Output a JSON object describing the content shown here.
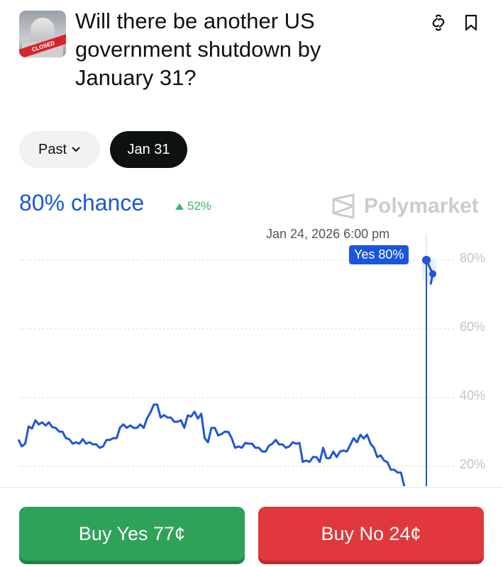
{
  "market": {
    "title": "Will there be another US government shutdown by January 31?",
    "thumbnail_text": "CLOSED",
    "icons": [
      "link-icon",
      "bookmark-icon"
    ]
  },
  "filters": {
    "past_label": "Past",
    "date_label": "Jan 31"
  },
  "summary": {
    "chance": "80% chance",
    "change": "52%",
    "change_direction": "up"
  },
  "brand": {
    "name": "Polymarket"
  },
  "hover": {
    "date": "Jan 24, 2026 6:00 pm",
    "label": "Yes 80%"
  },
  "actions": {
    "buy_yes": "Buy Yes 77¢",
    "buy_no": "Buy No 24¢"
  },
  "colors": {
    "accent": "#1a56db",
    "yes": "#2fa25a",
    "no": "#e0383c",
    "up": "#3cb371"
  },
  "chart_data": {
    "type": "line",
    "ylim": [
      20,
      80
    ],
    "yticks": [
      "80%",
      "60%",
      "40%",
      "20%"
    ],
    "ytick_values": [
      80,
      60,
      40,
      20
    ],
    "grid": true,
    "series": [
      {
        "values": [
          27.8,
          25.8,
          26.6,
          31.6,
          31,
          33.4,
          32.2,
          32.8,
          31.9,
          32.8,
          31.4,
          31.2,
          30.1,
          30.1,
          28.2,
          27.9,
          26.6,
          27,
          26.6,
          27.9,
          26.6,
          27,
          26.4,
          26.4,
          25.4,
          25.8,
          27.7,
          27.7,
          28.2,
          28.2,
          31.3,
          32.2,
          31.2,
          31.9,
          31.2,
          31.2,
          32.2,
          31.2,
          34,
          35.7,
          38,
          38,
          34.2,
          34.9,
          34.2,
          34.2,
          33,
          33,
          33.4,
          31.2,
          34.8,
          34.5,
          35.9,
          33.9,
          35.3,
          28.2,
          27,
          31.2,
          31.2,
          29,
          29.4,
          30.1,
          30,
          28.2,
          25.4,
          25.8,
          25.4,
          26.8,
          26.6,
          26.6,
          25.4,
          25.4,
          24.3,
          24.3,
          26,
          26.6,
          27.7,
          26.4,
          26.4,
          25.4,
          25.8,
          27,
          26.6,
          26.8,
          21.3,
          21.7,
          21.3,
          22.7,
          22.7,
          21.3,
          25.4,
          22.4,
          22.4,
          24.3,
          22.7,
          24.3,
          24.6,
          24.3,
          26.2,
          28.2,
          27,
          29.2,
          28.1,
          29.2,
          26.6,
          25.4,
          22.7,
          23.2,
          21.7,
          21.2,
          19,
          19,
          18.2,
          18.2,
          14.1
        ],
        "final_values": [
          80,
          76
        ]
      }
    ]
  }
}
